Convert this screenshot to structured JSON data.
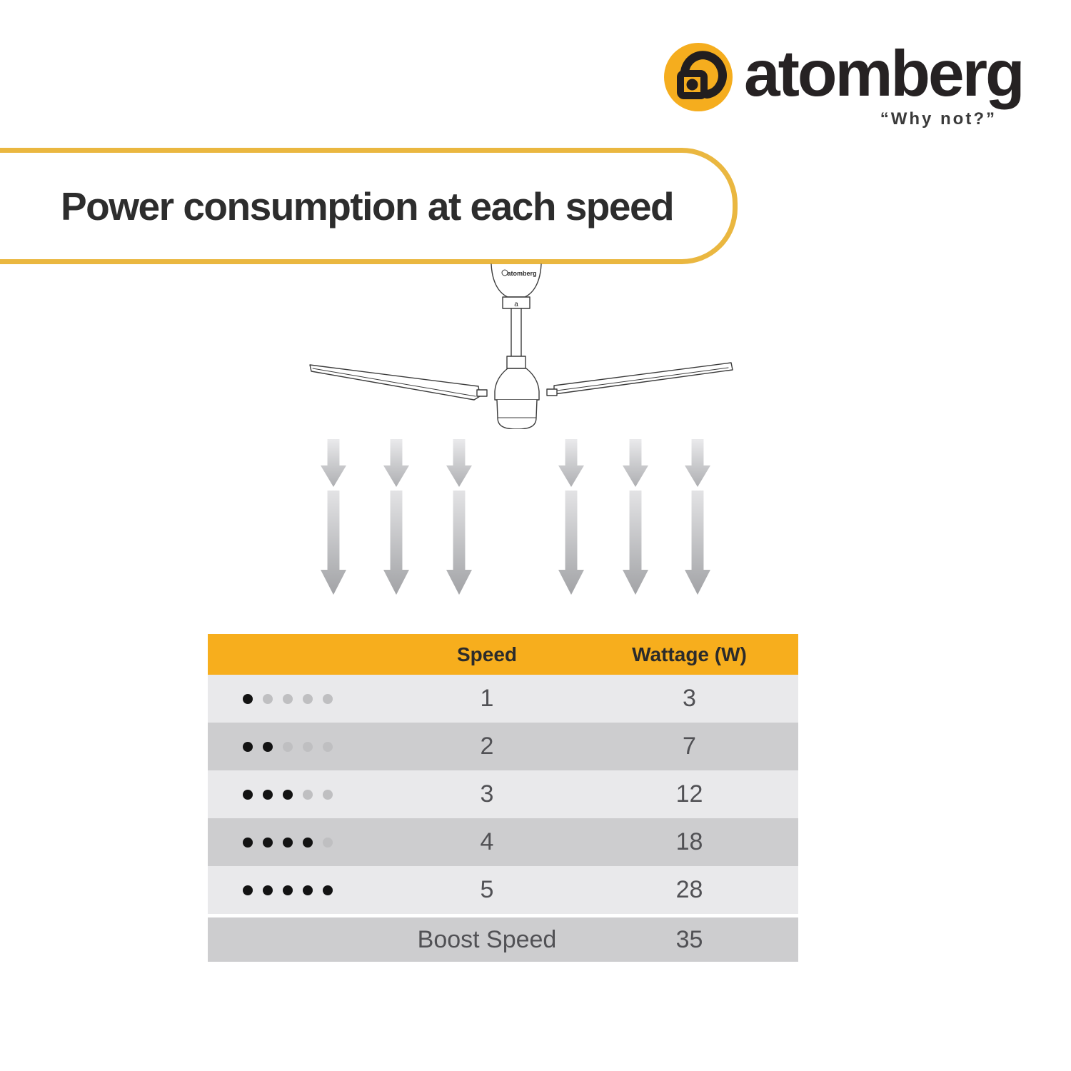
{
  "brand": {
    "name": "atomberg",
    "tagline": "“Why not?”"
  },
  "header": {
    "title": "Power consumption at each speed"
  },
  "fan": {
    "canopy_brand": "atomberg",
    "connector_letter": "a"
  },
  "colors": {
    "accent_yellow": "#F7AE1D",
    "banner_border": "#EAB740",
    "logo_circle": "#F5AD1E",
    "row_light": "#E9E9EB",
    "row_dark": "#CDCDCF",
    "dot_active": "#131313",
    "dot_inactive": "#BFBFC1",
    "arrow_gradient_top": "#E8E8EA",
    "arrow_gradient_bottom": "#A2A3A6"
  },
  "table": {
    "columns": [
      "Speed",
      "Wattage (W)"
    ],
    "rows": [
      {
        "dots_active": 1,
        "dots_total": 5,
        "speed": "1",
        "wattage": "3",
        "boost": false
      },
      {
        "dots_active": 2,
        "dots_total": 5,
        "speed": "2",
        "wattage": "7",
        "boost": false
      },
      {
        "dots_active": 3,
        "dots_total": 5,
        "speed": "3",
        "wattage": "12",
        "boost": false
      },
      {
        "dots_active": 4,
        "dots_total": 5,
        "speed": "4",
        "wattage": "18",
        "boost": false
      },
      {
        "dots_active": 5,
        "dots_total": 5,
        "speed": "5",
        "wattage": "28",
        "boost": false
      },
      {
        "dots_active": 0,
        "dots_total": 0,
        "speed": "Boost Speed",
        "wattage": "35",
        "boost": true
      }
    ]
  },
  "chart_data": {
    "type": "table",
    "title": "Power consumption at each speed",
    "columns": [
      "Speed",
      "Wattage (W)"
    ],
    "rows": [
      [
        "1",
        3
      ],
      [
        "2",
        7
      ],
      [
        "3",
        12
      ],
      [
        "4",
        18
      ],
      [
        "5",
        28
      ],
      [
        "Boost Speed",
        35
      ]
    ]
  }
}
